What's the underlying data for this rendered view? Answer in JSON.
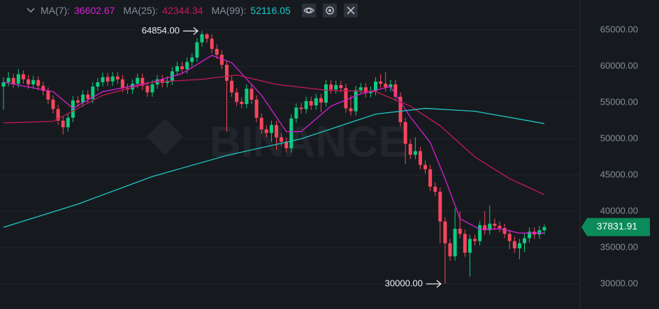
{
  "chart_data": {
    "type": "candlestick",
    "up_color": "#0ecb81",
    "down_color": "#f6465d",
    "grid": true,
    "ylim": [
      26538,
      69135
    ],
    "yticks": [
      {
        "value": 30000,
        "label": "30000.00"
      },
      {
        "value": 35000,
        "label": "35000.00"
      },
      {
        "value": 40000,
        "label": "40000.00"
      },
      {
        "value": 45000,
        "label": "45000.00"
      },
      {
        "value": 50000,
        "label": "50000.00"
      },
      {
        "value": 55000,
        "label": "55000.00"
      },
      {
        "value": 60000,
        "label": "60000.00"
      },
      {
        "value": 65000,
        "label": "65000.00"
      }
    ],
    "open": [
      57200,
      57800,
      58400,
      57600,
      58900,
      58200,
      57500,
      58100,
      57300,
      56600,
      55400,
      54100,
      52500,
      51600,
      52900,
      55300,
      55000,
      56100,
      55500,
      57200,
      57800,
      58500,
      57900,
      58600,
      58200,
      57000,
      56800,
      57600,
      58400,
      57300,
      56400,
      57500,
      58200,
      57700,
      58000,
      59300,
      60000,
      59600,
      60600,
      61200,
      63300,
      64400,
      63800,
      62400,
      61600,
      60200,
      58000,
      56400,
      55100,
      54800,
      56900,
      55400,
      52900,
      51300,
      50800,
      51900,
      50200,
      49600,
      48700,
      52800,
      54300,
      54100,
      55200,
      54600,
      55600,
      55000,
      57500,
      56800,
      57400,
      57000,
      54200,
      53800,
      56700,
      57100,
      56300,
      56600,
      57900,
      57600,
      57100,
      57500,
      55800,
      52300,
      49300,
      47800,
      48300,
      46400,
      45800,
      43400,
      42700,
      38600,
      35600,
      33800,
      37600,
      36900,
      34300,
      36200,
      35900,
      38100,
      37400,
      38300,
      38000,
      37700,
      36900,
      35900,
      34900,
      35600,
      36300,
      37200,
      36800,
      37400
    ],
    "high": [
      58500,
      59200,
      59000,
      59600,
      59400,
      58800,
      58700,
      58600,
      57900,
      57100,
      56000,
      54700,
      53100,
      53500,
      55900,
      55900,
      56700,
      56700,
      57800,
      58400,
      59100,
      59100,
      59200,
      59200,
      58800,
      57600,
      58200,
      59000,
      59000,
      57900,
      58100,
      58800,
      58800,
      58600,
      59900,
      60600,
      60600,
      61200,
      61800,
      63900,
      64854,
      64600,
      64400,
      63000,
      62200,
      60800,
      58600,
      57000,
      55700,
      57500,
      57500,
      56000,
      53500,
      51900,
      52500,
      52500,
      50800,
      50200,
      53400,
      54900,
      54900,
      55800,
      55800,
      56200,
      56200,
      58100,
      58100,
      58000,
      58000,
      57600,
      56000,
      57300,
      57700,
      57700,
      57200,
      58500,
      58900,
      59200,
      58100,
      58100,
      56400,
      52900,
      49900,
      50200,
      48900,
      47000,
      46400,
      44000,
      43300,
      39200,
      36200,
      40400,
      40000,
      37500,
      36800,
      36800,
      38700,
      40000,
      40800,
      39000,
      38600,
      38300,
      37500,
      36500,
      36200,
      36900,
      37800,
      37800,
      38000,
      38200
    ],
    "low": [
      54000,
      57200,
      57000,
      57100,
      57600,
      56900,
      56900,
      56700,
      56000,
      54800,
      53500,
      51900,
      50600,
      51000,
      52300,
      54400,
      54400,
      54900,
      54900,
      56600,
      57200,
      57300,
      57300,
      57600,
      56400,
      56200,
      56200,
      57000,
      56700,
      55800,
      55800,
      56900,
      57100,
      57100,
      57400,
      58700,
      59000,
      59000,
      60000,
      60600,
      62700,
      63200,
      61800,
      61000,
      59600,
      51000,
      55800,
      54500,
      54200,
      54200,
      54800,
      52300,
      50700,
      50200,
      49600,
      48500,
      49000,
      48100,
      48100,
      52200,
      53500,
      53500,
      54000,
      54000,
      53700,
      54400,
      56200,
      56200,
      56400,
      53600,
      53200,
      53200,
      56100,
      55700,
      55700,
      56000,
      57000,
      56500,
      56500,
      55200,
      51700,
      46500,
      47200,
      47200,
      45800,
      45200,
      42800,
      42100,
      35600,
      30000,
      33200,
      33200,
      36300,
      33700,
      31000,
      35300,
      35300,
      36800,
      36800,
      37400,
      37100,
      36300,
      34800,
      34300,
      33400,
      34400,
      35700,
      36200,
      36200,
      36800
    ],
    "close": [
      57800,
      58400,
      57600,
      58900,
      58200,
      57500,
      58100,
      57300,
      56600,
      55400,
      54100,
      52500,
      51600,
      52900,
      55300,
      55000,
      56100,
      55500,
      57200,
      57800,
      58500,
      57900,
      58600,
      58200,
      57000,
      56800,
      57600,
      58400,
      57300,
      56400,
      57500,
      58200,
      57700,
      58000,
      59300,
      60000,
      59600,
      60600,
      61200,
      63300,
      64400,
      63800,
      62400,
      61600,
      60200,
      58000,
      56400,
      55100,
      54800,
      56900,
      55400,
      52900,
      51300,
      50800,
      51900,
      50200,
      49600,
      48700,
      52800,
      54300,
      54100,
      55200,
      54600,
      55600,
      55000,
      57500,
      56800,
      57400,
      57000,
      54200,
      53800,
      56700,
      57100,
      56300,
      56600,
      57900,
      57600,
      57100,
      57500,
      55800,
      52300,
      49300,
      47800,
      48300,
      46400,
      45800,
      43400,
      42700,
      38600,
      35600,
      33800,
      37600,
      36900,
      34300,
      36200,
      35900,
      38100,
      37400,
      38300,
      38000,
      37700,
      36900,
      35900,
      34900,
      35600,
      36300,
      37200,
      36800,
      37400,
      37831.91
    ],
    "series": [
      {
        "name": "MA(7):",
        "color": "#d81fd8",
        "current": 36602.67,
        "x": [
          0,
          10,
          14,
          20,
          30,
          36,
          42,
          46,
          52,
          57,
          60,
          66,
          72,
          78,
          82,
          86,
          89,
          92,
          96,
          100,
          104,
          109
        ],
        "values": [
          57800,
          56500,
          54200,
          56500,
          57800,
          59000,
          61500,
          60500,
          56000,
          51000,
          51000,
          54500,
          56200,
          57200,
          53000,
          49500,
          44500,
          39000,
          37500,
          37600,
          37000,
          37000
        ]
      },
      {
        "name": "MA(25):",
        "color": "#c8185a",
        "current": 42344.34,
        "x": [
          0,
          10,
          20,
          30,
          40,
          47,
          55,
          65,
          75,
          82,
          88,
          95,
          102,
          109
        ],
        "values": [
          52200,
          52400,
          56000,
          57800,
          58200,
          58800,
          57500,
          56700,
          56500,
          54500,
          51800,
          47500,
          44500,
          42300
        ]
      },
      {
        "name": "MA(99):",
        "color": "#1ec8c8",
        "current": 52116.05,
        "x": [
          0,
          15,
          30,
          45,
          60,
          75,
          85,
          95,
          109
        ],
        "values": [
          37800,
          41000,
          44800,
          47700,
          50000,
          53400,
          54200,
          53800,
          52100
        ]
      }
    ],
    "annotations": [
      {
        "value": 64854,
        "label": "64854.00",
        "field": "high"
      },
      {
        "value": 30000,
        "label": "30000.00",
        "field": "low"
      }
    ],
    "last_price": {
      "value": 37831.91,
      "label": "37831.91"
    },
    "watermark": "BINANCE"
  }
}
